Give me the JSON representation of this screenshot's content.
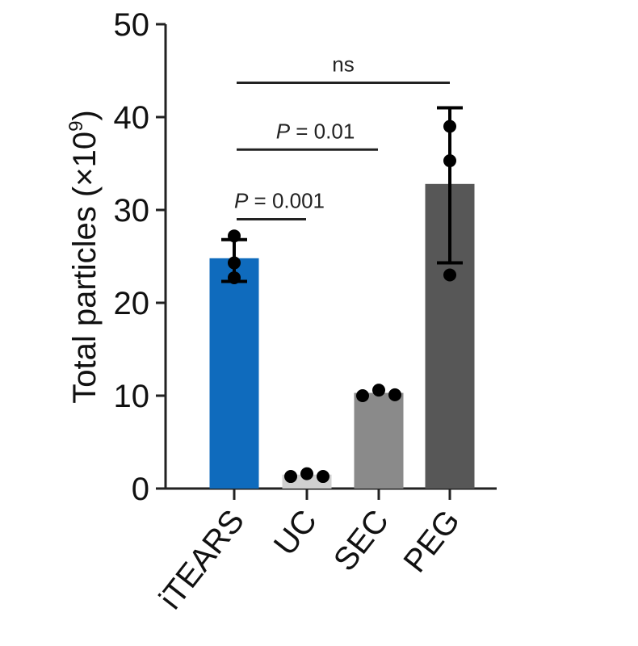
{
  "chart_data": {
    "type": "bar",
    "ylabel": "Total particles (×10⁹)",
    "ylabel_base": "Total particles (×10",
    "ylabel_exp": "9",
    "ylabel_close": ")",
    "ylim": [
      0,
      50
    ],
    "yticks": [
      0,
      10,
      20,
      30,
      40,
      50
    ],
    "yticklabels": [
      "0",
      "10",
      "20",
      "30",
      "40",
      "50"
    ],
    "categories": [
      "iTEARS",
      "UC",
      "SEC",
      "PEG"
    ],
    "values": [
      24.8,
      1.5,
      10.3,
      32.8
    ],
    "error_low": [
      22.3,
      null,
      null,
      24.3
    ],
    "error_high": [
      26.8,
      null,
      null,
      41.0
    ],
    "points": [
      [
        27.2,
        24.3,
        22.7
      ],
      [
        1.3,
        1.6,
        1.3
      ],
      [
        10.0,
        10.6,
        10.1
      ],
      [
        39.0,
        35.3,
        23.0
      ]
    ],
    "colors": [
      "#0f6bbd",
      "#d0d0d0",
      "#8a8a8a",
      "#575757"
    ],
    "grid": false,
    "annotations": [
      {
        "from": "iTEARS",
        "to": "UC",
        "label_p": "P",
        "label_rest": " = 0.001",
        "level": 29
      },
      {
        "from": "iTEARS",
        "to": "SEC",
        "label_p": "P",
        "label_rest": " = 0.01",
        "level": 36.5
      },
      {
        "from": "iTEARS",
        "to": "PEG",
        "label_p": "",
        "label_rest": "ns",
        "level": 43.7
      }
    ]
  }
}
